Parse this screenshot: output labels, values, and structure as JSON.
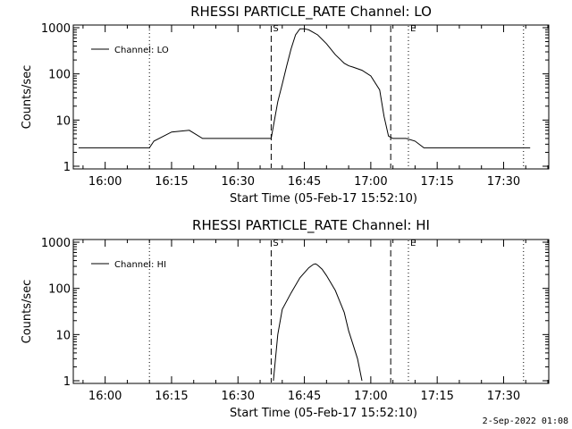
{
  "chart_data": [
    {
      "type": "line",
      "title": "RHESSI PARTICLE_RATE Channel: LO",
      "xlabel": "Start Time (05-Feb-17 15:52:10)",
      "ylabel": "Counts/sec",
      "yscale": "log",
      "ylim": [
        1,
        1000
      ],
      "xlim_minutes": [
        -7.2,
        100.2
      ],
      "x_ticks": [
        "16:00",
        "16:15",
        "16:30",
        "16:45",
        "17:00",
        "17:15",
        "17:30"
      ],
      "y_ticks": [
        "1",
        "10",
        "100",
        "1000"
      ],
      "legend": "Channel: LO",
      "legend_placement": "top-left",
      "markers": [
        {
          "label": "",
          "style": "dotted",
          "minutes": 10
        },
        {
          "label": "S",
          "style": "dashed",
          "minutes": 37.5
        },
        {
          "label": "",
          "style": "dashed",
          "minutes": 64.5
        },
        {
          "label": "E",
          "style": "dotted",
          "minutes": 68.5
        },
        {
          "label": "",
          "style": "dotted",
          "minutes": 94.5
        }
      ],
      "series": [
        {
          "name": "Channel: LO",
          "minutes": [
            -6,
            10,
            11,
            15,
            19,
            22,
            26,
            30,
            33,
            36,
            37.5,
            39,
            40,
            41,
            42,
            43,
            44,
            45,
            46,
            48,
            50,
            52,
            54,
            55,
            56,
            58,
            60,
            62,
            63,
            64,
            65,
            66,
            68,
            70,
            72,
            74,
            76,
            80,
            84,
            88,
            92,
            96
          ],
          "counts": [
            2.5,
            2.5,
            3.5,
            5.5,
            6,
            4,
            4,
            4,
            4,
            4,
            4,
            25,
            60,
            150,
            350,
            700,
            950,
            950,
            900,
            700,
            450,
            260,
            170,
            150,
            140,
            120,
            90,
            45,
            12,
            4.5,
            4,
            4,
            4,
            3.5,
            2.5,
            2.5,
            2.5,
            2.5,
            2.5,
            2.5,
            2.5,
            2.5
          ]
        }
      ]
    },
    {
      "type": "line",
      "title": "RHESSI PARTICLE_RATE Channel: HI",
      "xlabel": "Start Time (05-Feb-17 15:52:10)",
      "ylabel": "Counts/sec",
      "yscale": "log",
      "ylim": [
        1,
        1000
      ],
      "xlim_minutes": [
        -7.2,
        100.2
      ],
      "x_ticks": [
        "16:00",
        "16:15",
        "16:30",
        "16:45",
        "17:00",
        "17:15",
        "17:30"
      ],
      "y_ticks": [
        "1",
        "10",
        "100",
        "1000"
      ],
      "legend": "Channel: HI",
      "legend_placement": "top-left",
      "markers": [
        {
          "label": "",
          "style": "dotted",
          "minutes": 10
        },
        {
          "label": "S",
          "style": "dashed",
          "minutes": 37.5
        },
        {
          "label": "",
          "style": "dashed",
          "minutes": 64.5
        },
        {
          "label": "E",
          "style": "dotted",
          "minutes": 68.5
        },
        {
          "label": "",
          "style": "dotted",
          "minutes": 94.5
        }
      ],
      "series": [
        {
          "name": "Channel: HI",
          "minutes": [
            38,
            39,
            40,
            42,
            44,
            46,
            47,
            47.5,
            48,
            49,
            50,
            52,
            54,
            55,
            56,
            57,
            58
          ],
          "counts": [
            1,
            10,
            35,
            80,
            170,
            280,
            330,
            340,
            320,
            260,
            190,
            90,
            30,
            12,
            6,
            3,
            1
          ]
        }
      ]
    }
  ],
  "footer": {
    "date_stamp": "2-Sep-2022 01:08"
  }
}
